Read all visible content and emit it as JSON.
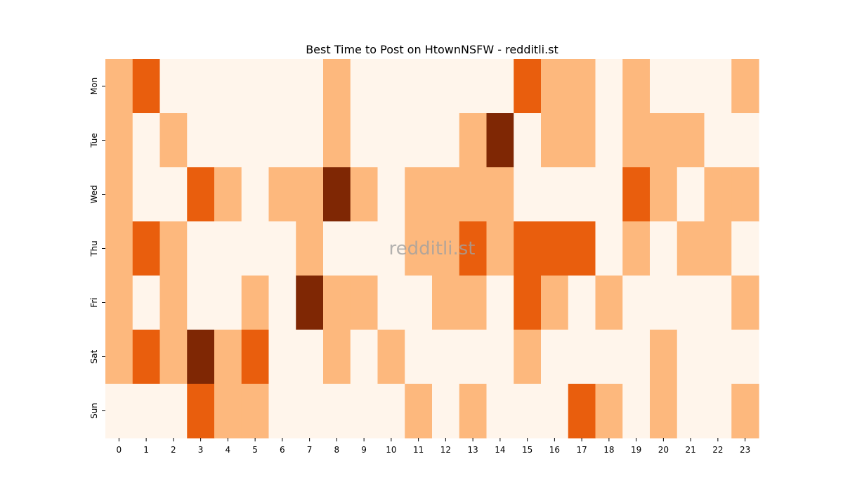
{
  "chart_data": {
    "type": "heatmap",
    "title": "Best Time to Post on HtownNSFW - redditli.st",
    "watermark": "redditli.st",
    "xlabel": "",
    "ylabel": "",
    "x": [
      0,
      1,
      2,
      3,
      4,
      5,
      6,
      7,
      8,
      9,
      10,
      11,
      12,
      13,
      14,
      15,
      16,
      17,
      18,
      19,
      20,
      21,
      22,
      23
    ],
    "y": [
      "Mon",
      "Tue",
      "Wed",
      "Thu",
      "Fri",
      "Sat",
      "Sun"
    ],
    "values": [
      [
        1,
        2,
        0,
        0,
        0,
        0,
        0,
        0,
        1,
        0,
        0,
        0,
        0,
        0,
        0,
        2,
        1,
        1,
        0,
        1,
        0,
        0,
        0,
        1
      ],
      [
        1,
        0,
        1,
        0,
        0,
        0,
        0,
        0,
        1,
        0,
        0,
        0,
        0,
        1,
        3,
        0,
        1,
        1,
        0,
        1,
        1,
        1,
        0,
        0
      ],
      [
        1,
        0,
        0,
        2,
        1,
        0,
        1,
        1,
        3,
        1,
        0,
        1,
        1,
        1,
        1,
        0,
        0,
        0,
        0,
        2,
        1,
        0,
        1,
        1
      ],
      [
        1,
        2,
        1,
        0,
        0,
        0,
        0,
        1,
        0,
        0,
        0,
        1,
        1,
        2,
        1,
        2,
        2,
        2,
        0,
        1,
        0,
        1,
        1,
        0
      ],
      [
        1,
        0,
        1,
        0,
        0,
        1,
        0,
        3,
        1,
        1,
        0,
        0,
        1,
        1,
        0,
        2,
        1,
        0,
        1,
        0,
        0,
        0,
        0,
        1
      ],
      [
        1,
        2,
        1,
        3,
        1,
        2,
        0,
        0,
        1,
        0,
        1,
        0,
        0,
        0,
        0,
        1,
        0,
        0,
        0,
        0,
        1,
        0,
        0,
        0
      ],
      [
        0,
        0,
        0,
        2,
        1,
        1,
        0,
        0,
        0,
        0,
        0,
        1,
        0,
        1,
        0,
        0,
        0,
        2,
        1,
        0,
        1,
        0,
        0,
        1
      ]
    ],
    "colors": [
      "#fff5eb",
      "#fdb87d",
      "#e95e0d",
      "#7f2704"
    ],
    "colorbar": false,
    "grid": false
  }
}
